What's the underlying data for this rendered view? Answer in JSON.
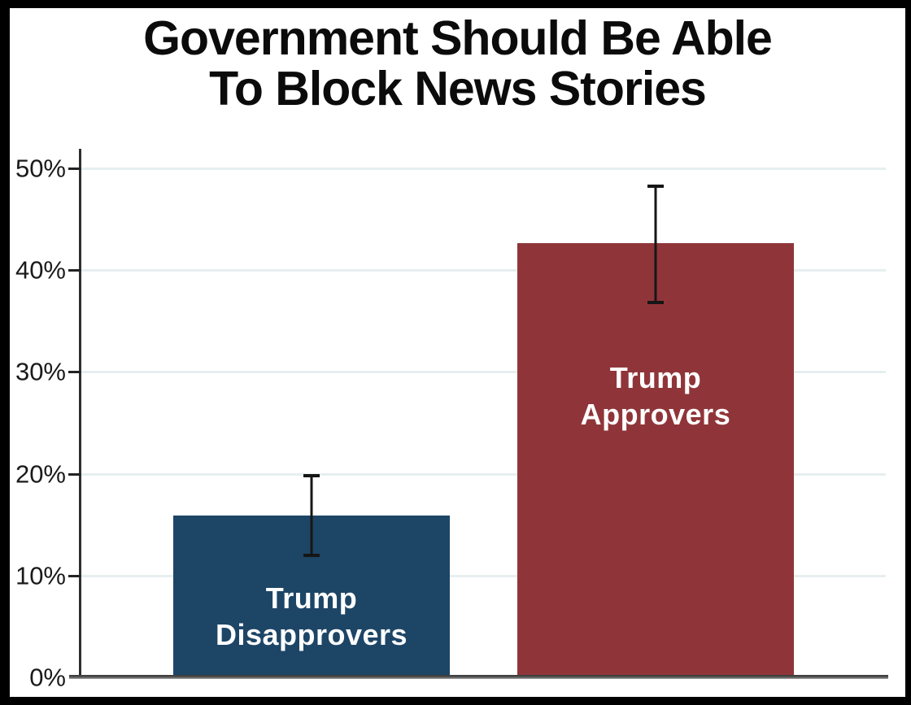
{
  "title": {
    "line1": "Government Should Be Able",
    "line2": "To Block News Stories"
  },
  "chart_data": {
    "type": "bar",
    "title": "Government Should Be Able To Block News Stories",
    "categories": [
      "Trump Disapprovers",
      "Trump Approvers"
    ],
    "values": [
      15.9,
      42.6
    ],
    "error_low": [
      12.0,
      36.8
    ],
    "error_high": [
      19.8,
      48.2
    ],
    "bar_colors": [
      "#1d4566",
      "#8f3539"
    ],
    "bar_label_lines": [
      [
        "Trump",
        "Disapprovers"
      ],
      [
        "Trump",
        "Approvers"
      ]
    ],
    "bar_label_color": "#ffffff",
    "yticks": [
      {
        "value": 0,
        "label": "0%"
      },
      {
        "value": 10,
        "label": "10%"
      },
      {
        "value": 20,
        "label": "20%"
      },
      {
        "value": 30,
        "label": "30%"
      },
      {
        "value": 40,
        "label": "40%"
      },
      {
        "value": 50,
        "label": "50%"
      }
    ],
    "ylim": [
      0,
      51.9
    ],
    "xlabel": "",
    "ylabel": "",
    "grid": true,
    "legend": null
  },
  "colors": {
    "frame_border": "#000000",
    "background": "#ffffff",
    "gridline": "#e7eef0",
    "axis_line": "#2f2f2f",
    "baseline": "#4a4a4a",
    "tick_mark": "#222222",
    "tick_label": "#1a1a1a",
    "error_bar": "#161616",
    "title_text": "#0b0b0b"
  }
}
